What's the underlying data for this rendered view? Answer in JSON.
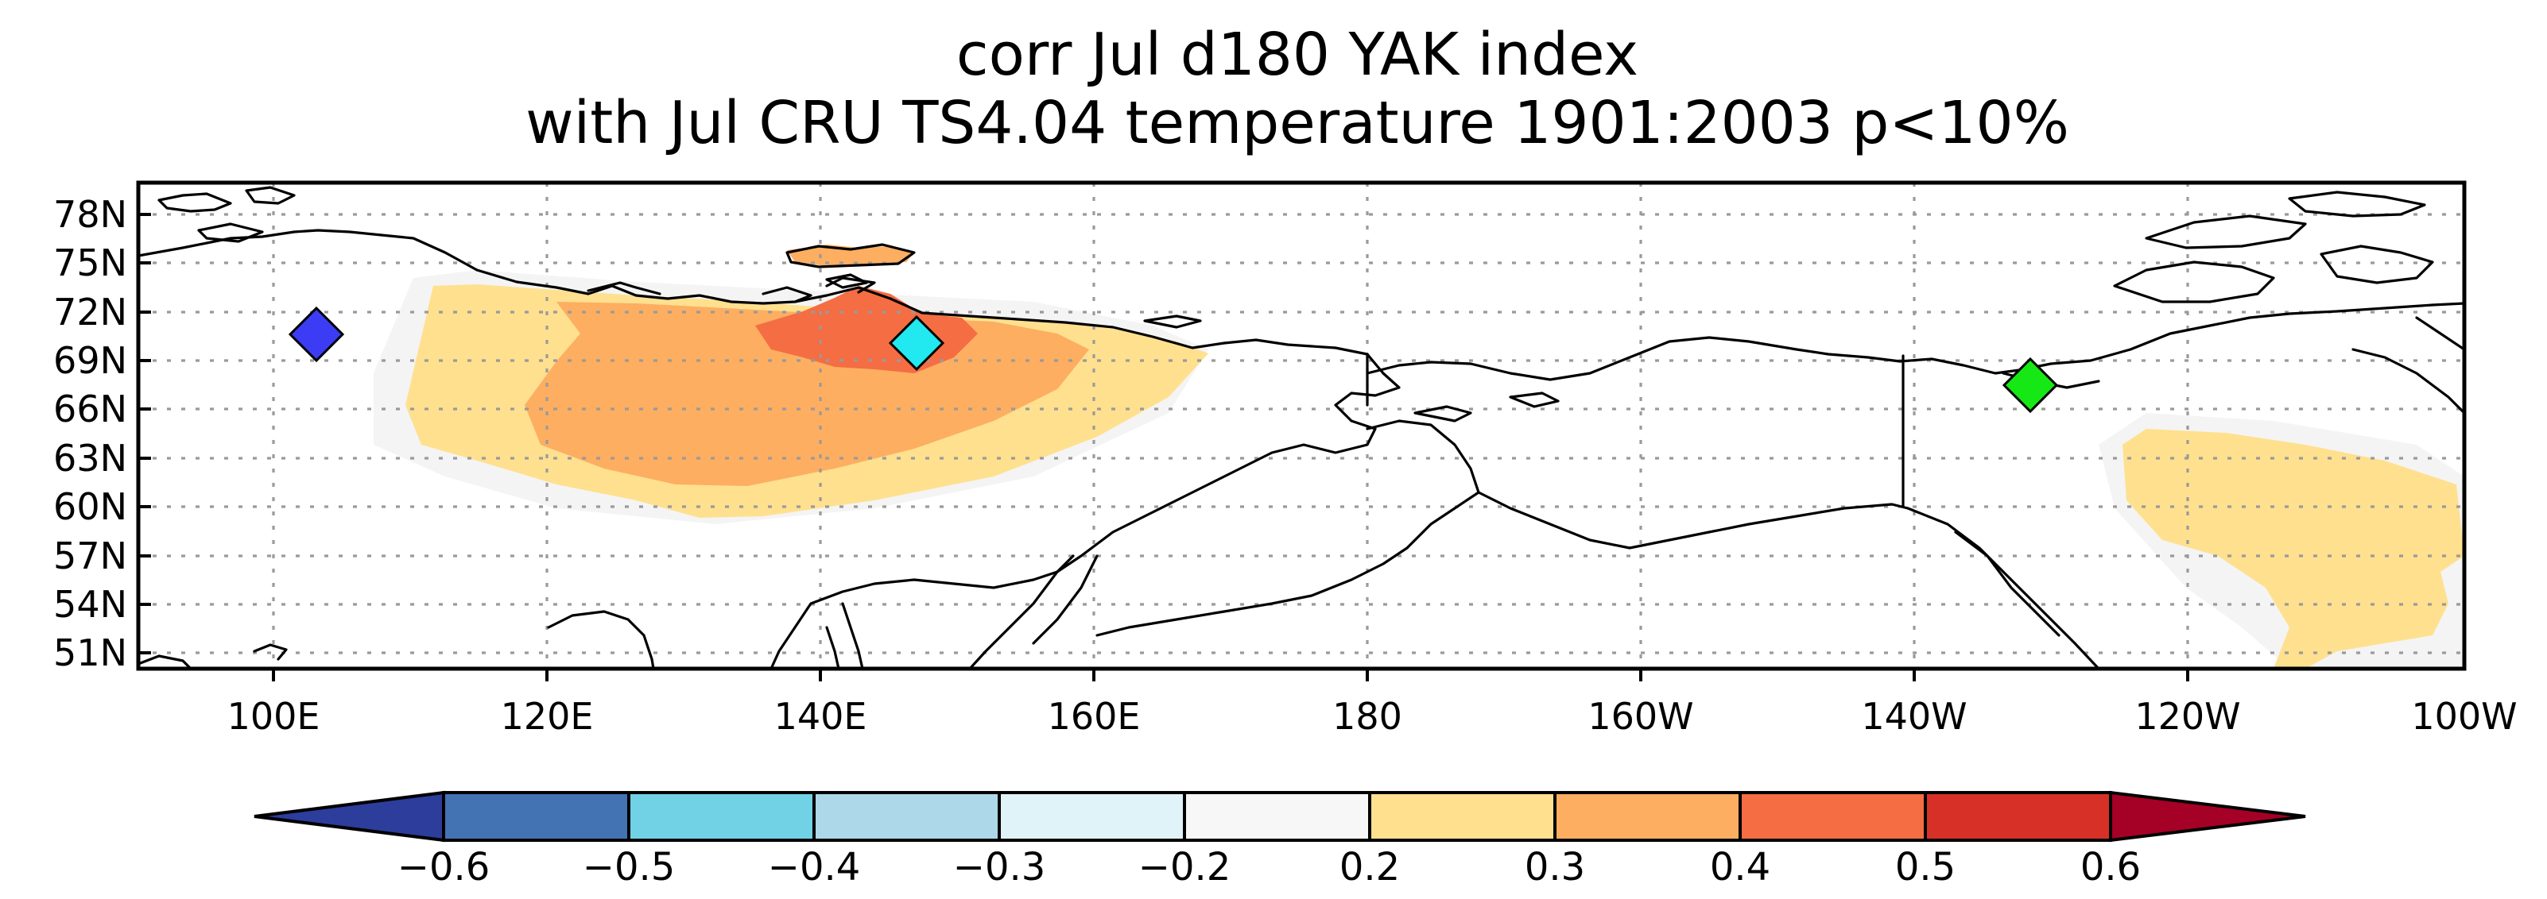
{
  "map": {
    "title_line1": "corr Jul d180 YAK index",
    "title_line2": "with Jul CRU TS4.04 temperature 1901:2003 p<10%",
    "lon_labels": [
      "100E",
      "120E",
      "140E",
      "160E",
      "180",
      "160W",
      "140W",
      "120W",
      "100W"
    ],
    "lat_labels": [
      "78N",
      "75N",
      "72N",
      "69N",
      "66N",
      "63N",
      "60N",
      "57N",
      "54N",
      "51N"
    ],
    "markers": [
      {
        "name": "blue-site",
        "lon": 103,
        "lat": 70.5,
        "color": "#3c3cf5"
      },
      {
        "name": "cyan-site",
        "lon": 147,
        "lat": 70.0,
        "color": "#22e8f0"
      },
      {
        "name": "green-site",
        "lon": -132,
        "lat": 67.5,
        "color": "#16e816"
      }
    ],
    "correlation_regions": [
      {
        "region": "Yakutia / East Siberia",
        "level": "0.2-0.3"
      },
      {
        "region": "Central Yakutia",
        "level": "0.3-0.4"
      },
      {
        "region": "Lena-Indigirka coast",
        "level": "0.4-0.5"
      },
      {
        "region": "Western Canada",
        "level": "0.2-0.3"
      }
    ]
  },
  "colorbar": {
    "tick_labels": [
      "−0.6",
      "−0.5",
      "−0.4",
      "−0.3",
      "−0.2",
      "0.2",
      "0.3",
      "0.4",
      "0.5",
      "0.6"
    ],
    "colors": [
      "#2c3d9c",
      "#4473b4",
      "#71d2e6",
      "#add8e9",
      "#e0f3f8",
      "#f7f7f7",
      "#fee08f",
      "#fdae61",
      "#f46d43",
      "#d73027",
      "#a50026"
    ]
  }
}
